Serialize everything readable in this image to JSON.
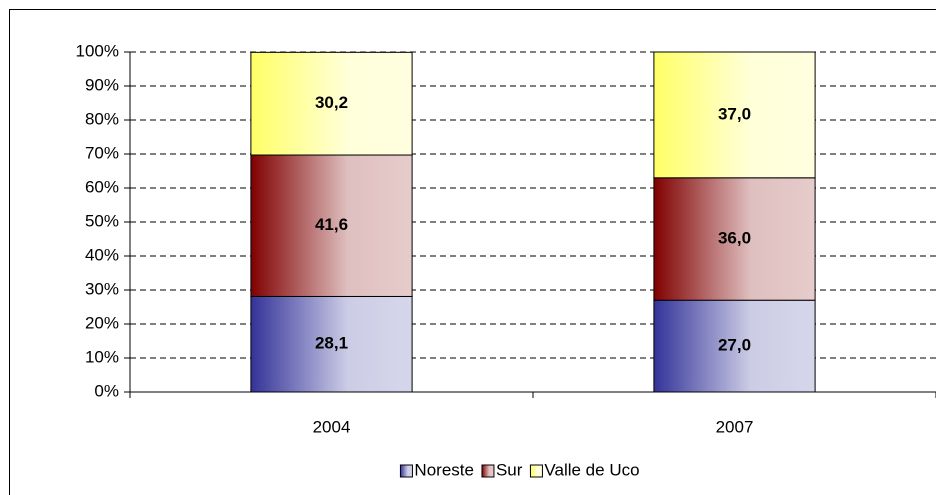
{
  "chart_data": {
    "type": "stacked_bar",
    "categories": [
      "2004",
      "2007"
    ],
    "series": [
      {
        "name": "Noreste",
        "color": "#333399",
        "values": [
          28.1,
          27.0
        ],
        "value_labels": [
          "28,1",
          "27,0"
        ]
      },
      {
        "name": "Sur",
        "color": "#800000",
        "values": [
          41.6,
          36.0
        ],
        "value_labels": [
          "41,6",
          "36,0"
        ]
      },
      {
        "name": "Valle de Uco",
        "color": "#ffff66",
        "values": [
          30.2,
          37.0
        ],
        "value_labels": [
          "30,2",
          "37,0"
        ]
      }
    ],
    "ylim": [
      0,
      100
    ],
    "yticks": [
      {
        "value": 0,
        "label": "0%"
      },
      {
        "value": 10,
        "label": "10%"
      },
      {
        "value": 20,
        "label": "20%"
      },
      {
        "value": 30,
        "label": "30%"
      },
      {
        "value": 40,
        "label": "40%"
      },
      {
        "value": 50,
        "label": "50%"
      },
      {
        "value": 60,
        "label": "60%"
      },
      {
        "value": 70,
        "label": "70%"
      },
      {
        "value": 80,
        "label": "80%"
      },
      {
        "value": 90,
        "label": "90%"
      },
      {
        "value": 100,
        "label": "100%"
      }
    ],
    "grid": true,
    "legend": "bottom"
  }
}
